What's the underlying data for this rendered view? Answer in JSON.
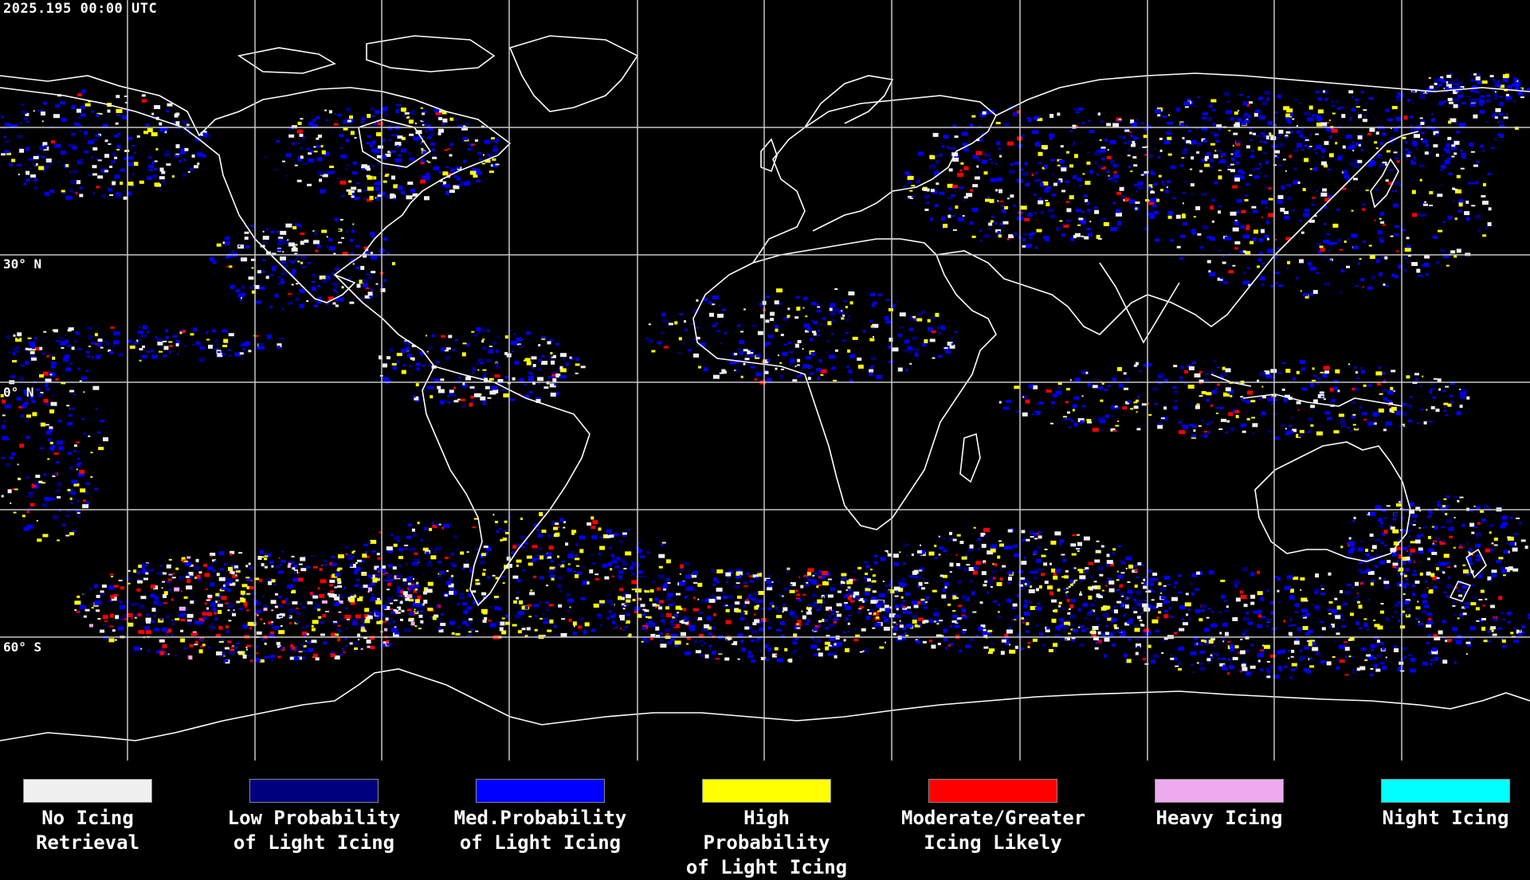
{
  "header": {
    "timestamp": "2025.195 00:00 UTC"
  },
  "map": {
    "latitude_labels": [
      "30° N",
      "0° N",
      "60° S"
    ],
    "colors": {
      "background": "#000000",
      "coastline": "#ffffff",
      "grid": "#c8c8c8"
    }
  },
  "legend": {
    "items": [
      {
        "label": "No Icing\nRetrieval",
        "color": "#f0f0f0"
      },
      {
        "label": "Low Probability\nof Light Icing",
        "color": "#00007e"
      },
      {
        "label": "Med.Probability\nof Light Icing",
        "color": "#0000ff"
      },
      {
        "label": "High Probability\nof Light Icing",
        "color": "#ffff00"
      },
      {
        "label": "Moderate/Greater\nIcing Likely",
        "color": "#ff0000"
      },
      {
        "label": "Heavy Icing",
        "color": "#eeaaee"
      },
      {
        "label": "Night Icing",
        "color": "#00ffff"
      }
    ]
  }
}
